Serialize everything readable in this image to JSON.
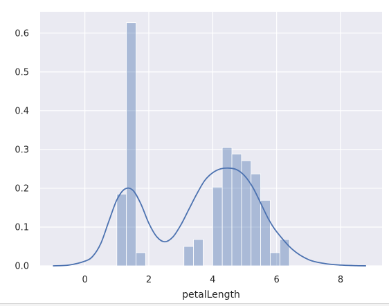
{
  "chart_data": {
    "type": "bar",
    "title": "",
    "xlabel": "petalLength",
    "ylabel": "",
    "xlim": [
      -1.4,
      9.3
    ],
    "ylim": [
      0,
      0.655
    ],
    "xticks": [
      0,
      2,
      4,
      6,
      8
    ],
    "xtick_labels": [
      "0",
      "2",
      "4",
      "6",
      "8"
    ],
    "yticks": [
      0.0,
      0.1,
      0.2,
      0.3,
      0.4,
      0.5,
      0.6
    ],
    "ytick_labels": [
      "0.0",
      "0.1",
      "0.2",
      "0.3",
      "0.4",
      "0.5",
      "0.6"
    ],
    "grid": true,
    "background": "#eaeaf2",
    "bar_color": "#4c72b0",
    "line_color": "#4c72b0",
    "histogram": {
      "bin_width": 0.3,
      "bins": [
        {
          "x0": 1.0,
          "x1": 1.3,
          "value": 0.185
        },
        {
          "x0": 1.3,
          "x1": 1.6,
          "value": 0.627
        },
        {
          "x0": 1.6,
          "x1": 1.9,
          "value": 0.034
        },
        {
          "x0": 1.9,
          "x1": 2.2,
          "value": 0.0
        },
        {
          "x0": 2.2,
          "x1": 2.5,
          "value": 0.0
        },
        {
          "x0": 2.5,
          "x1": 2.8,
          "value": 0.0
        },
        {
          "x0": 2.8,
          "x1": 3.1,
          "value": 0.0
        },
        {
          "x0": 3.1,
          "x1": 3.4,
          "value": 0.05
        },
        {
          "x0": 3.4,
          "x1": 3.7,
          "value": 0.068
        },
        {
          "x0": 3.7,
          "x1": 4.0,
          "value": 0.0
        },
        {
          "x0": 4.0,
          "x1": 4.3,
          "value": 0.203
        },
        {
          "x0": 4.3,
          "x1": 4.6,
          "value": 0.305
        },
        {
          "x0": 4.6,
          "x1": 4.9,
          "value": 0.288
        },
        {
          "x0": 4.9,
          "x1": 5.2,
          "value": 0.271
        },
        {
          "x0": 5.2,
          "x1": 5.5,
          "value": 0.237
        },
        {
          "x0": 5.5,
          "x1": 5.8,
          "value": 0.169
        },
        {
          "x0": 5.8,
          "x1": 6.1,
          "value": 0.034
        },
        {
          "x0": 6.1,
          "x1": 6.4,
          "value": 0.068
        }
      ]
    },
    "kde": {
      "x": [
        -1.0,
        -0.5,
        0.0,
        0.25,
        0.5,
        0.75,
        1.0,
        1.25,
        1.5,
        1.75,
        2.0,
        2.25,
        2.5,
        2.75,
        3.0,
        3.25,
        3.5,
        3.75,
        4.0,
        4.25,
        4.5,
        4.75,
        5.0,
        5.25,
        5.5,
        5.75,
        6.0,
        6.5,
        7.0,
        7.5,
        8.0,
        8.5,
        8.8
      ],
      "y": [
        0.0,
        0.002,
        0.012,
        0.025,
        0.058,
        0.115,
        0.17,
        0.198,
        0.195,
        0.16,
        0.11,
        0.075,
        0.062,
        0.074,
        0.105,
        0.145,
        0.185,
        0.22,
        0.24,
        0.25,
        0.252,
        0.248,
        0.232,
        0.203,
        0.162,
        0.12,
        0.088,
        0.042,
        0.016,
        0.006,
        0.002,
        0.0005,
        0.0
      ]
    }
  }
}
